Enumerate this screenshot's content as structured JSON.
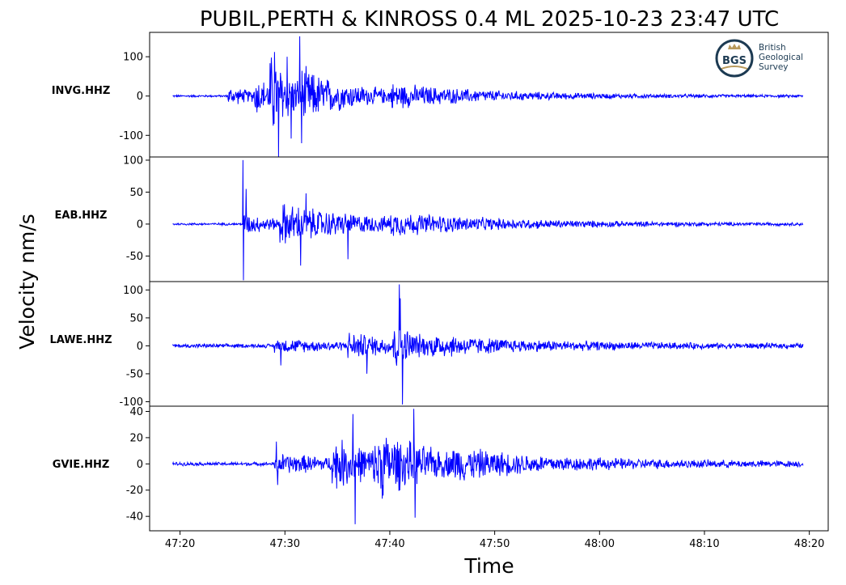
{
  "title": "PUBIL,PERTH & KINROSS 0.4 ML   2025-10-23 23:47 UTC",
  "ylabel": "Velocity nm/s",
  "xlabel": "Time",
  "logo": {
    "badge_text": "BGS",
    "lines": [
      "British",
      "Geological",
      "Survey"
    ],
    "colors": {
      "ring": "#1c3a52",
      "accent": "#b99a5c"
    }
  },
  "colors": {
    "trace": "#0000ff",
    "frame": "#000000"
  },
  "chart_data": {
    "type": "line",
    "x_unit": "time of day (mm:ss after 23:00 UTC)",
    "x_ticks": [
      {
        "label": "47:20",
        "t": 0
      },
      {
        "label": "47:30",
        "t": 10
      },
      {
        "label": "47:40",
        "t": 20
      },
      {
        "label": "47:50",
        "t": 30
      },
      {
        "label": "48:00",
        "t": 40
      },
      {
        "label": "48:10",
        "t": 50
      },
      {
        "label": "48:20",
        "t": 60
      }
    ],
    "xlim": [
      -2.9,
      61.8
    ],
    "record_span": [
      -0.7,
      59.4
    ],
    "series": [
      {
        "name": "INVG.HHZ",
        "ylim": [
          -155,
          162
        ],
        "yticks": [
          {
            "v": 100,
            "label": "100"
          },
          {
            "v": 0,
            "label": "0"
          },
          {
            "v": -100,
            "label": "-100"
          }
        ],
        "noise": 3,
        "segments": [
          {
            "t0": 4.5,
            "amp": 25,
            "decay": 4
          },
          {
            "t0": 7.0,
            "amp": 45,
            "decay": 3
          },
          {
            "t0": 8.5,
            "amp": 90,
            "decay": 2.5
          },
          {
            "t0": 11.5,
            "amp": 45,
            "decay": 8
          },
          {
            "t0": 20,
            "amp": 20,
            "decay": 12
          }
        ],
        "peaks": [
          {
            "t": 11.4,
            "v": 152
          },
          {
            "t": 11.6,
            "v": -120
          },
          {
            "t": 9.4,
            "v": -155
          },
          {
            "t": 9.0,
            "v": 112
          },
          {
            "t": 10.6,
            "v": -108
          },
          {
            "t": 10.2,
            "v": 100
          }
        ]
      },
      {
        "name": "EAB.HHZ",
        "ylim": [
          -90,
          105
        ],
        "yticks": [
          {
            "v": 100,
            "label": "100"
          },
          {
            "v": 50,
            "label": "50"
          },
          {
            "v": 0,
            "label": "0"
          },
          {
            "v": -50,
            "label": "-50"
          }
        ],
        "noise": 2,
        "segments": [
          {
            "t0": 6.0,
            "amp": 18,
            "decay": 4
          },
          {
            "t0": 9.5,
            "amp": 30,
            "decay": 10
          },
          {
            "t0": 20,
            "amp": 10,
            "decay": 14
          }
        ],
        "peaks": [
          {
            "t": 6.0,
            "v": 100
          },
          {
            "t": 6.05,
            "v": -88
          },
          {
            "t": 6.3,
            "v": 55
          },
          {
            "t": 11.5,
            "v": -65
          },
          {
            "t": 12.0,
            "v": 48
          },
          {
            "t": 16.0,
            "v": -55
          }
        ]
      },
      {
        "name": "LAWE.HHZ",
        "ylim": [
          -108,
          115
        ],
        "yticks": [
          {
            "v": 100,
            "label": "100"
          },
          {
            "v": 50,
            "label": "50"
          },
          {
            "v": 0,
            "label": "0"
          },
          {
            "v": -50,
            "label": "-50"
          },
          {
            "v": -100,
            "label": "-100"
          }
        ],
        "noise": 4,
        "segments": [
          {
            "t0": 9.0,
            "amp": 12,
            "decay": 8
          },
          {
            "t0": 16.0,
            "amp": 20,
            "decay": 6
          },
          {
            "t0": 20.3,
            "amp": 40,
            "decay": 2
          },
          {
            "t0": 24,
            "amp": 12,
            "decay": 16
          }
        ],
        "peaks": [
          {
            "t": 20.9,
            "v": 110
          },
          {
            "t": 21.2,
            "v": -105
          },
          {
            "t": 21.0,
            "v": 85
          },
          {
            "t": 17.8,
            "v": -50
          },
          {
            "t": 9.6,
            "v": 38
          },
          {
            "t": 9.6,
            "v": -35
          }
        ]
      },
      {
        "name": "GVIE.HHZ",
        "ylim": [
          -51,
          44
        ],
        "yticks": [
          {
            "v": 40,
            "label": "40"
          },
          {
            "v": 20,
            "label": "20"
          },
          {
            "v": 0,
            "label": "0"
          },
          {
            "v": -20,
            "label": "-20"
          },
          {
            "v": -40,
            "label": "-40"
          }
        ],
        "noise": 1.5,
        "segments": [
          {
            "t0": 9.0,
            "amp": 8,
            "decay": 10
          },
          {
            "t0": 14.5,
            "amp": 18,
            "decay": 5
          },
          {
            "t0": 18.5,
            "amp": 20,
            "decay": 6
          },
          {
            "t0": 26,
            "amp": 6,
            "decay": 20
          }
        ],
        "peaks": [
          {
            "t": 16.7,
            "v": -46
          },
          {
            "t": 22.3,
            "v": 42
          },
          {
            "t": 22.4,
            "v": -41
          },
          {
            "t": 16.5,
            "v": 38
          },
          {
            "t": 9.2,
            "v": 17
          },
          {
            "t": 9.3,
            "v": -16
          }
        ]
      }
    ]
  }
}
